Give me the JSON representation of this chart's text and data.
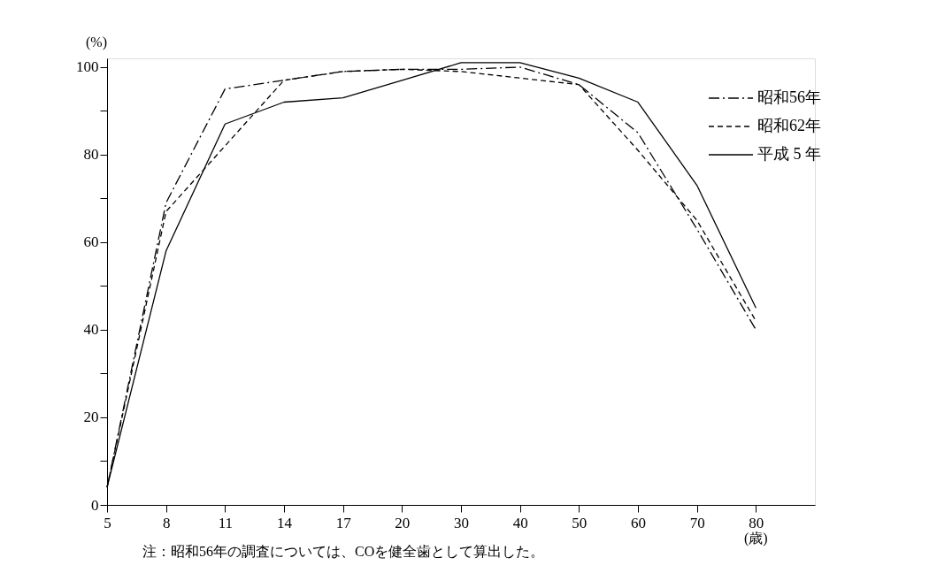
{
  "chart_data": {
    "type": "line",
    "ylabel": "(%)",
    "xlabel": "(歳)",
    "categories": [
      "5",
      "8",
      "11",
      "14",
      "17",
      "20",
      "30",
      "40",
      "50",
      "60",
      "70",
      "80"
    ],
    "series": [
      {
        "name": "昭和56年",
        "color": "#000000",
        "line_style": "dashdot",
        "values": [
          4,
          69,
          95,
          97,
          99,
          99.5,
          99.5,
          100,
          96,
          85,
          63,
          40
        ]
      },
      {
        "name": "昭和62年",
        "color": "#000000",
        "line_style": "dashed",
        "values": [
          4,
          67,
          82,
          97,
          99,
          99.5,
          99,
          97.5,
          96,
          81,
          65,
          42
        ]
      },
      {
        "name": "平成 5 年",
        "color": "#000000",
        "line_style": "solid",
        "values": [
          4,
          58,
          87,
          92,
          93,
          97,
          101,
          101,
          97.5,
          92,
          73,
          45
        ]
      }
    ],
    "ylim": [
      0,
      102
    ],
    "yticks": [
      0,
      {
        "value": 10,
        "label": null
      },
      20,
      {
        "value": 30,
        "label": null
      },
      40,
      {
        "value": 50,
        "label": null
      },
      60,
      {
        "value": 70,
        "label": null
      },
      80,
      {
        "value": 90,
        "label": null
      },
      100
    ],
    "grid": false,
    "legend": "top right",
    "marker": "none",
    "annotations": [
      "注：昭和56年の調査については、COを健全歯として算出した。"
    ]
  }
}
